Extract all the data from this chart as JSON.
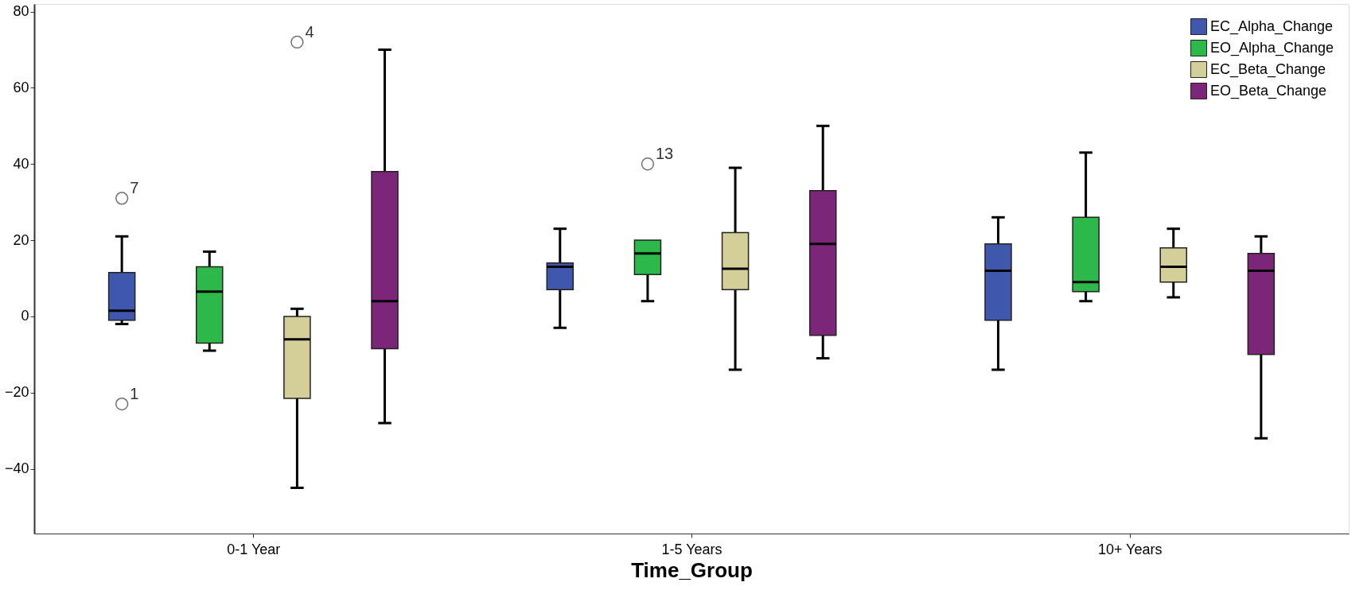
{
  "chart_data": {
    "type": "box",
    "xlabel": "Time_Group",
    "categories": [
      "0-1 Year",
      "1-5 Years",
      "10+ Years"
    ],
    "series": [
      {
        "name": "EC_Alpha_Change",
        "color": "#3f58ad",
        "boxes": [
          {
            "low": -2,
            "q1": -1,
            "median": 1.5,
            "q3": 11.5,
            "high": 21,
            "outliers": [
              31,
              -23
            ]
          },
          {
            "low": -3,
            "q1": 7,
            "median": 13,
            "q3": 14,
            "high": 23
          },
          {
            "low": -14,
            "q1": -1,
            "median": 12,
            "q3": 19,
            "high": 26
          }
        ]
      },
      {
        "name": "EO_Alpha_Change",
        "color": "#2db84a",
        "boxes": [
          {
            "low": -9,
            "q1": -7,
            "median": 6.5,
            "q3": 13,
            "high": 17
          },
          {
            "low": 4,
            "q1": 11,
            "median": 16.5,
            "q3": 20,
            "high": 20,
            "outliers": [
              40
            ]
          },
          {
            "low": 4,
            "q1": 6.5,
            "median": 9,
            "q3": 26,
            "high": 43
          }
        ]
      },
      {
        "name": "EC_Beta_Change",
        "color": "#d4cf98",
        "boxes": [
          {
            "low": -45,
            "q1": -21.5,
            "median": -6,
            "q3": 0,
            "high": 2,
            "outliers": [
              72
            ]
          },
          {
            "low": -14,
            "q1": 7,
            "median": 12.5,
            "q3": 22,
            "high": 39
          },
          {
            "low": 5,
            "q1": 9,
            "median": 13,
            "q3": 18,
            "high": 23
          }
        ]
      },
      {
        "name": "EO_Beta_Change",
        "color": "#7b2678",
        "boxes": [
          {
            "low": -28,
            "q1": -8.5,
            "median": 4,
            "q3": 38,
            "high": 70
          },
          {
            "low": -11,
            "q1": -5,
            "median": 19,
            "q3": 33,
            "high": 50
          },
          {
            "low": -32,
            "q1": -10,
            "median": 12,
            "q3": 16.5,
            "high": 21
          }
        ]
      }
    ],
    "ylim": [
      -57,
      82
    ],
    "yticks": [
      -40,
      -20,
      0,
      20,
      40,
      60,
      80
    ],
    "annotations": [
      "7",
      "1",
      "13",
      "4"
    ],
    "legend": "top right",
    "grid": false
  }
}
